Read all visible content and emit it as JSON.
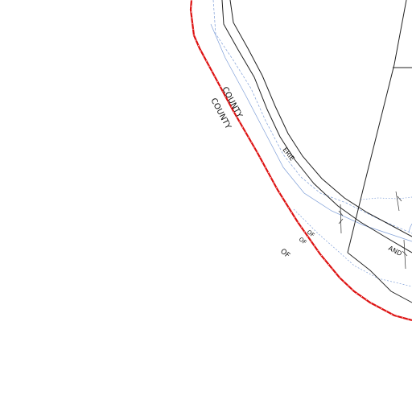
{
  "map": {
    "labels": {
      "county_upper": "COUNTY",
      "county_lower": "COUNTY",
      "erie": "ERIE",
      "of_upper_1": "OF",
      "of_upper_2": "OF",
      "of_lower": "OF",
      "and": "AND"
    },
    "colors": {
      "boundary": "#dd1111",
      "roads": "#222222",
      "water": "#7f9fd8",
      "background": "#ffffff"
    }
  }
}
